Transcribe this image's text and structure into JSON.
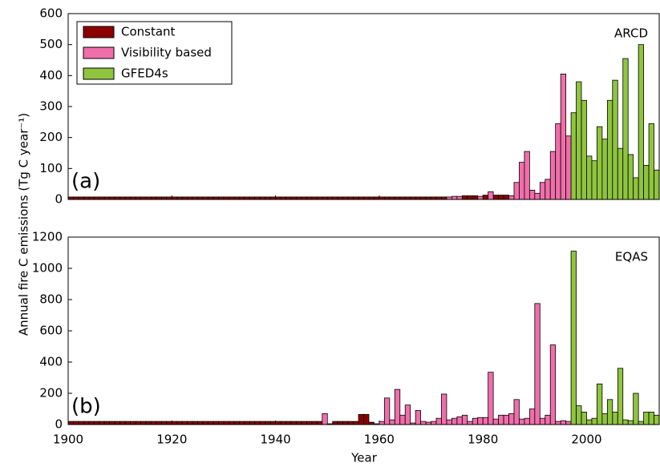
{
  "ylabel": "Annual fire C emissions (Tg C year⁻¹)",
  "xlabel": "Year",
  "chart_data": [
    {
      "type": "bar",
      "panel_label": "(a)",
      "region": "ARCD",
      "xlim": [
        1900,
        2014
      ],
      "xticks": [
        1900,
        1920,
        1940,
        1960,
        1980,
        2000
      ],
      "ylim": [
        0,
        600
      ],
      "yticks": [
        0,
        100,
        200,
        300,
        400,
        500,
        600
      ],
      "legend": "upper left",
      "series": [
        {
          "name": "Constant",
          "color": "#8b0000",
          "x": [
            1900,
            1901,
            1902,
            1903,
            1904,
            1905,
            1906,
            1907,
            1908,
            1909,
            1910,
            1911,
            1912,
            1913,
            1914,
            1915,
            1916,
            1917,
            1918,
            1919,
            1920,
            1921,
            1922,
            1923,
            1924,
            1925,
            1926,
            1927,
            1928,
            1929,
            1930,
            1931,
            1932,
            1933,
            1934,
            1935,
            1936,
            1937,
            1938,
            1939,
            1940,
            1941,
            1942,
            1943,
            1944,
            1945,
            1946,
            1947,
            1948,
            1949,
            1950,
            1951,
            1952,
            1953,
            1954,
            1955,
            1956,
            1957,
            1958,
            1959,
            1960,
            1961,
            1962,
            1963,
            1964,
            1965,
            1966,
            1967,
            1968,
            1969,
            1970,
            1971,
            1972,
            1976,
            1977,
            1978,
            1980,
            1982,
            1983,
            1984
          ],
          "values": [
            8,
            8,
            8,
            8,
            8,
            8,
            8,
            8,
            8,
            8,
            8,
            8,
            8,
            8,
            8,
            8,
            8,
            8,
            8,
            8,
            8,
            8,
            8,
            8,
            8,
            8,
            8,
            8,
            8,
            8,
            8,
            8,
            8,
            8,
            8,
            8,
            8,
            8,
            8,
            8,
            8,
            8,
            8,
            8,
            8,
            8,
            8,
            8,
            8,
            8,
            8,
            8,
            8,
            8,
            8,
            8,
            8,
            8,
            8,
            8,
            8,
            8,
            8,
            8,
            8,
            8,
            8,
            8,
            8,
            8,
            8,
            8,
            8,
            12,
            12,
            12,
            14,
            14,
            14,
            14
          ]
        },
        {
          "name": "Visibility based",
          "color": "#f06eaa",
          "x": [
            1973,
            1974,
            1975,
            1979,
            1981,
            1985,
            1986,
            1987,
            1988,
            1989,
            1990,
            1991,
            1992,
            1993,
            1994,
            1995,
            1996
          ],
          "values": [
            8,
            10,
            10,
            10,
            25,
            12,
            55,
            120,
            155,
            30,
            20,
            55,
            65,
            155,
            245,
            405,
            205
          ]
        },
        {
          "name": "GFED4s",
          "color": "#8fc43e",
          "x": [
            1997,
            1998,
            1999,
            2000,
            2001,
            2002,
            2003,
            2004,
            2005,
            2006,
            2007,
            2008,
            2009,
            2010,
            2011,
            2012,
            2013
          ],
          "values": [
            280,
            380,
            320,
            140,
            125,
            235,
            195,
            320,
            385,
            165,
            455,
            145,
            70,
            500,
            110,
            245,
            95
          ]
        }
      ]
    },
    {
      "type": "bar",
      "panel_label": "(b)",
      "region": "EQAS",
      "xlim": [
        1900,
        2014
      ],
      "xticks": [
        1900,
        1920,
        1940,
        1960,
        1980,
        2000
      ],
      "ylim": [
        0,
        1200
      ],
      "yticks": [
        0,
        200,
        400,
        600,
        800,
        1000,
        1200
      ],
      "series": [
        {
          "name": "Constant",
          "color": "#8b0000",
          "x": [
            1900,
            1901,
            1902,
            1903,
            1904,
            1905,
            1906,
            1907,
            1908,
            1909,
            1910,
            1911,
            1912,
            1913,
            1914,
            1915,
            1916,
            1917,
            1918,
            1919,
            1920,
            1921,
            1922,
            1923,
            1924,
            1925,
            1926,
            1927,
            1928,
            1929,
            1930,
            1931,
            1932,
            1933,
            1934,
            1935,
            1936,
            1937,
            1938,
            1939,
            1940,
            1941,
            1942,
            1943,
            1944,
            1945,
            1946,
            1947,
            1948,
            1951,
            1952,
            1953,
            1954,
            1955,
            1956,
            1957,
            1958
          ],
          "values": [
            20,
            20,
            20,
            20,
            20,
            20,
            20,
            20,
            20,
            20,
            20,
            20,
            20,
            20,
            20,
            20,
            20,
            20,
            20,
            20,
            20,
            20,
            20,
            20,
            20,
            20,
            20,
            20,
            20,
            20,
            20,
            20,
            20,
            20,
            20,
            20,
            20,
            20,
            20,
            20,
            20,
            20,
            20,
            20,
            20,
            20,
            20,
            20,
            20,
            20,
            20,
            20,
            20,
            20,
            65,
            65,
            15
          ]
        },
        {
          "name": "Visibility based",
          "color": "#f06eaa",
          "x": [
            1949,
            1950,
            1959,
            1960,
            1961,
            1962,
            1963,
            1964,
            1965,
            1966,
            1967,
            1968,
            1969,
            1970,
            1971,
            1972,
            1973,
            1974,
            1975,
            1976,
            1977,
            1978,
            1979,
            1980,
            1981,
            1982,
            1983,
            1984,
            1985,
            1986,
            1987,
            1988,
            1989,
            1990,
            1991,
            1992,
            1993,
            1994,
            1995,
            1996
          ],
          "values": [
            70,
            5,
            5,
            20,
            170,
            30,
            225,
            60,
            125,
            10,
            90,
            20,
            15,
            20,
            40,
            195,
            30,
            40,
            50,
            60,
            20,
            40,
            45,
            45,
            335,
            35,
            60,
            60,
            70,
            160,
            35,
            40,
            100,
            775,
            40,
            60,
            510,
            20,
            25,
            20
          ]
        },
        {
          "name": "GFED4s",
          "color": "#8fc43e",
          "x": [
            1997,
            1998,
            1999,
            2000,
            2001,
            2002,
            2003,
            2004,
            2005,
            2006,
            2007,
            2008,
            2009,
            2010,
            2011,
            2012,
            2013
          ],
          "values": [
            1110,
            120,
            80,
            30,
            40,
            260,
            70,
            160,
            80,
            360,
            30,
            25,
            200,
            20,
            80,
            80,
            60
          ]
        }
      ]
    }
  ]
}
